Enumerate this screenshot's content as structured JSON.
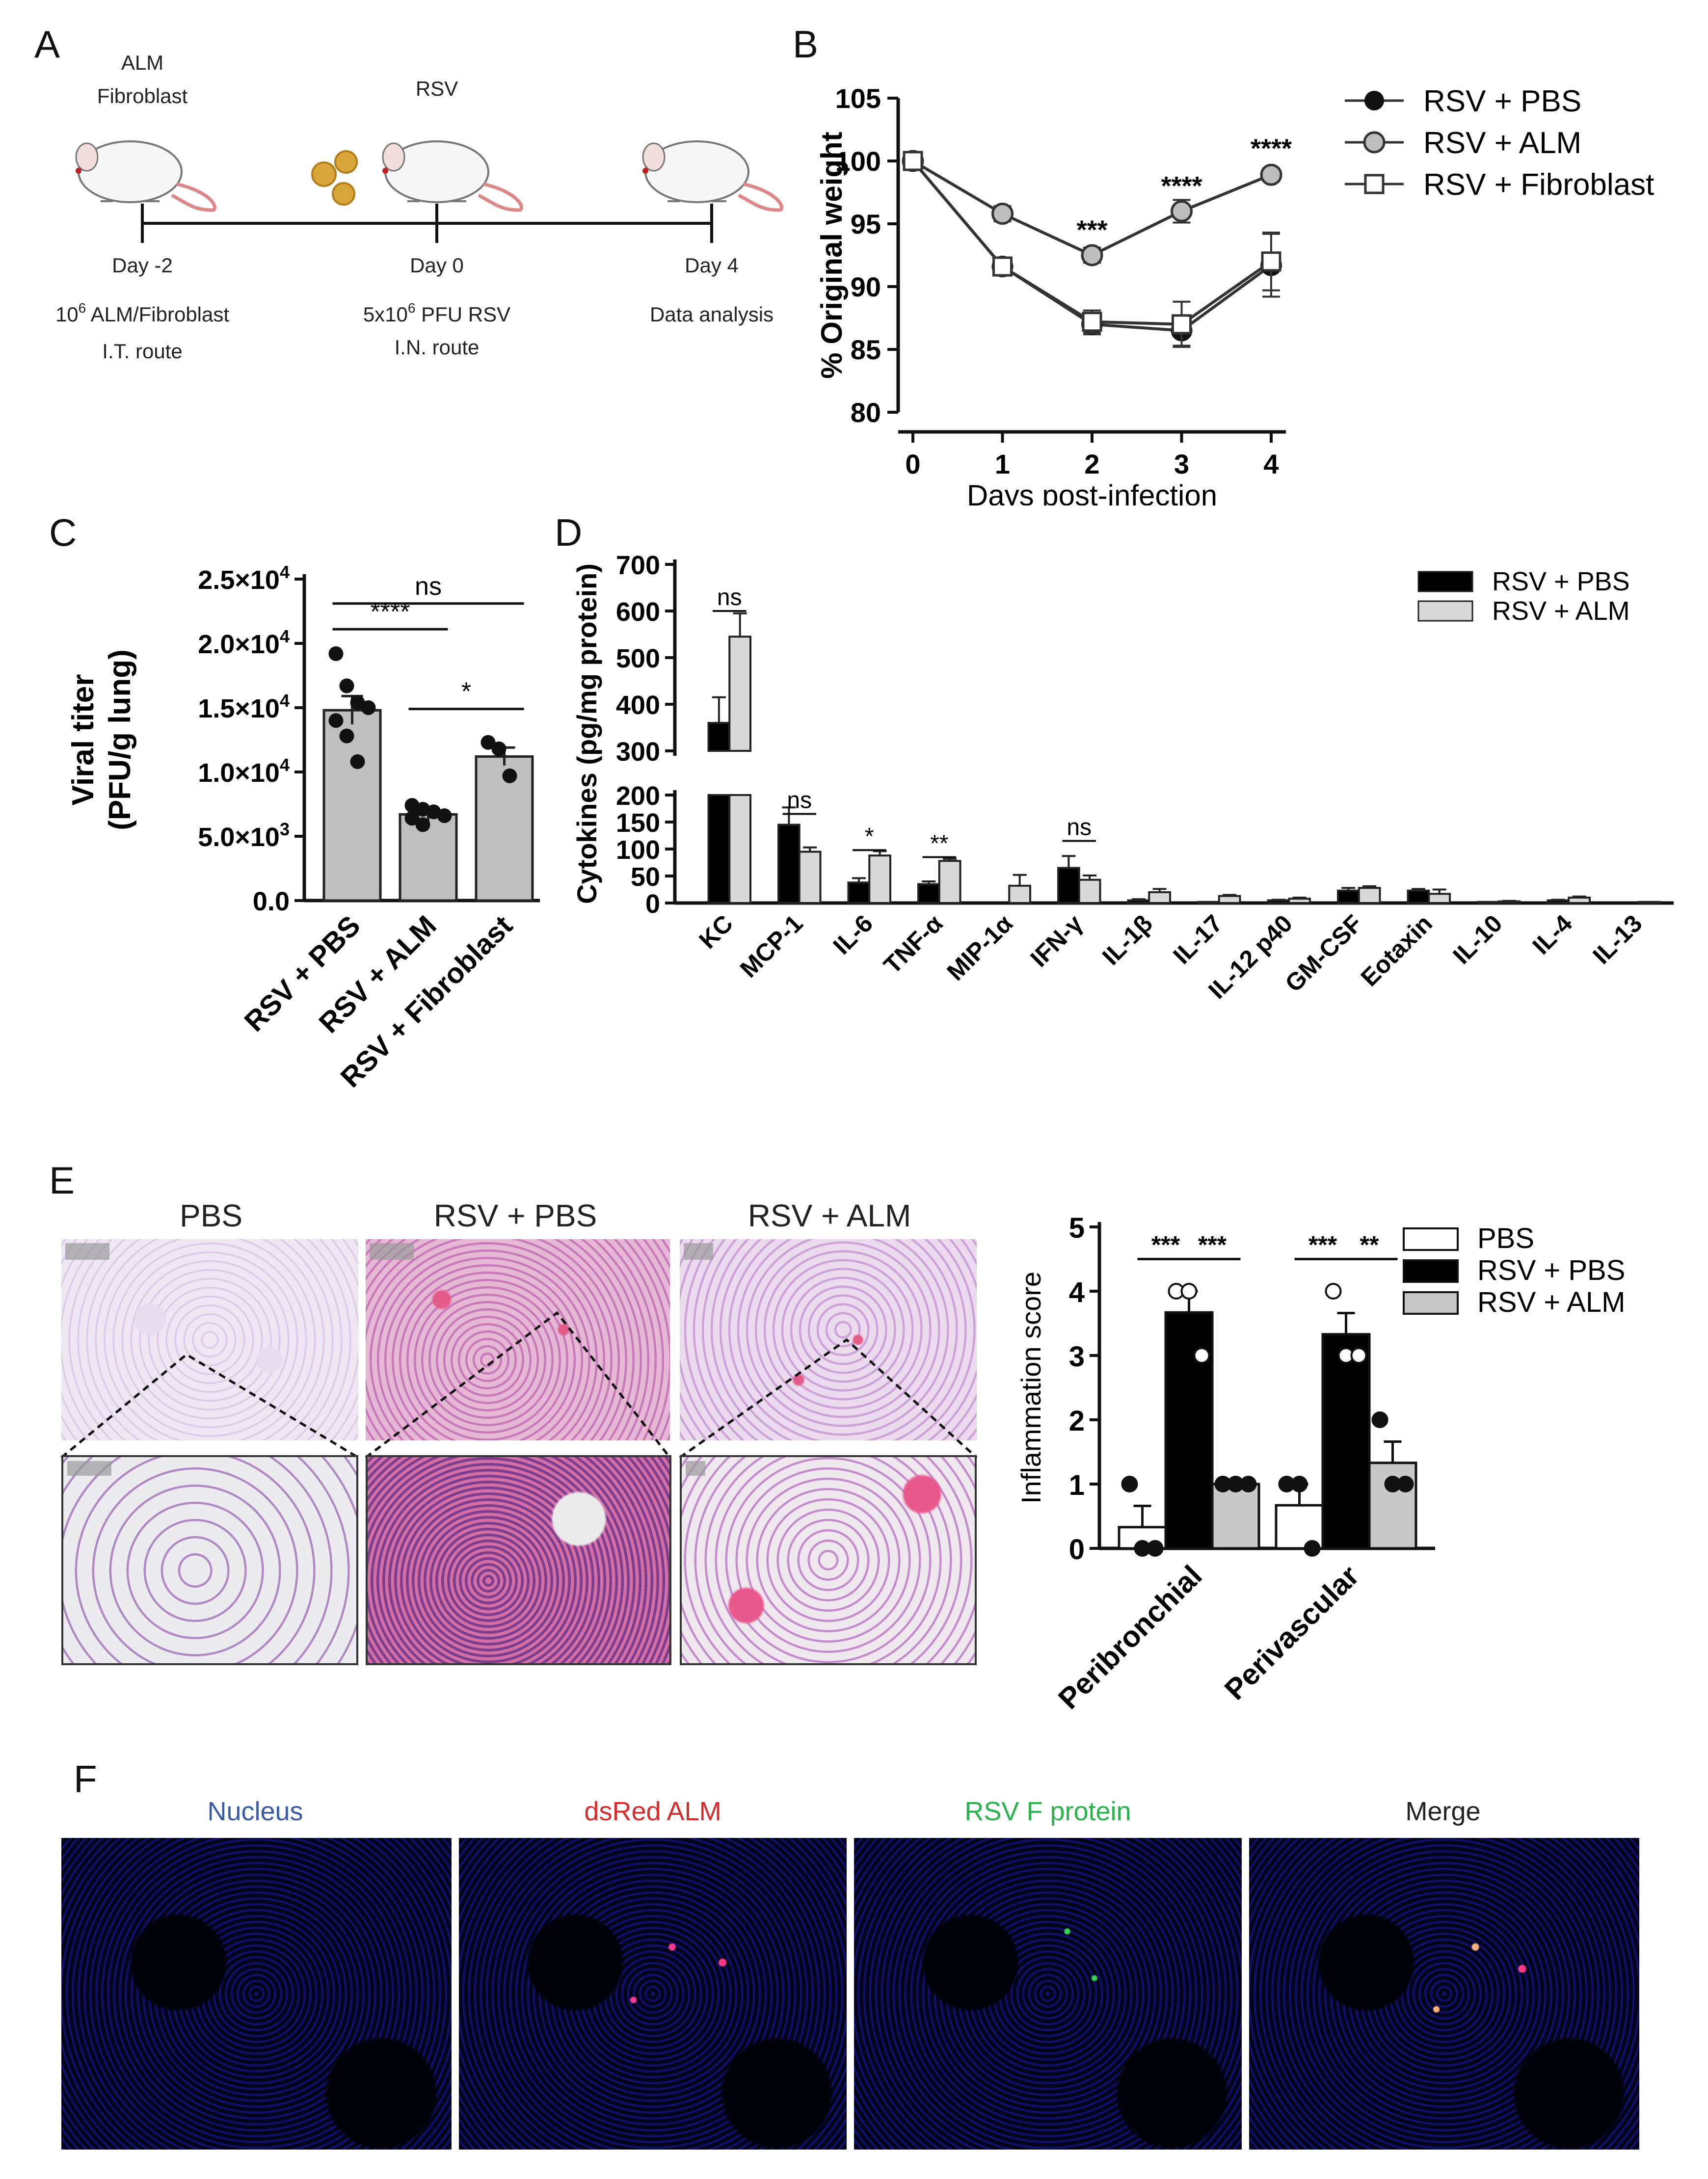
{
  "panels": {
    "A": "A",
    "B": "B",
    "C": "C",
    "D": "D",
    "E": "E",
    "F": "F"
  },
  "panel_a": {
    "top_labels": [
      "ALM",
      "Fibroblast",
      "RSV"
    ],
    "days": [
      "Day -2",
      "Day 0",
      "Day 4"
    ],
    "desc_pre": [
      "10",
      "5x10"
    ],
    "desc_sup": [
      "6",
      "6"
    ],
    "desc_post": [
      " ALM/Fibroblast",
      " PFU RSV"
    ],
    "route": [
      "I.T. route",
      "I.N. route"
    ],
    "analysis": "Data analysis"
  },
  "chart_data": [
    {
      "panel": "B",
      "type": "line",
      "xlabel": "Days post-infection",
      "ylabel": "% Original weight",
      "x": [
        0,
        1,
        2,
        3,
        4
      ],
      "xlim": [
        0,
        4
      ],
      "ylim": [
        80,
        105
      ],
      "yticks": [
        80,
        85,
        90,
        95,
        100,
        105
      ],
      "series": [
        {
          "name": "RSV + PBS",
          "values": [
            100,
            91.6,
            87.0,
            86.5,
            91.7
          ],
          "err": [
            0.4,
            0.6,
            0.8,
            1.2,
            2.5
          ],
          "marker": "circle-filled"
        },
        {
          "name": "RSV + ALM",
          "values": [
            100,
            95.8,
            92.5,
            96.0,
            98.9
          ],
          "err": [
            0.3,
            0.6,
            0.6,
            0.9,
            0.5
          ],
          "marker": "circle-grey"
        },
        {
          "name": "RSV + Fibroblast",
          "values": [
            100,
            91.6,
            87.2,
            87.0,
            92.0
          ],
          "err": [
            0.3,
            0.6,
            0.9,
            1.8,
            2.3
          ],
          "marker": "square-open"
        }
      ],
      "annotations": [
        {
          "x": 2,
          "y": 93.8,
          "text": "***"
        },
        {
          "x": 3,
          "y": 97.3,
          "text": "****"
        },
        {
          "x": 4,
          "y": 100.3,
          "text": "****"
        }
      ]
    },
    {
      "panel": "C",
      "type": "bar",
      "ylabel": [
        "Viral titer",
        "(PFU/g lung)"
      ],
      "categories": [
        "RSV + PBS",
        "RSV + ALM",
        "RSV + Fibroblast"
      ],
      "values": [
        14800,
        6700,
        11200
      ],
      "err": [
        1100,
        500,
        700
      ],
      "points": [
        [
          19200,
          16700,
          15400,
          15000,
          14000,
          12800,
          10800
        ],
        [
          7400,
          7100,
          6900,
          6600,
          6400,
          5900
        ],
        [
          12300,
          11800,
          9700
        ]
      ],
      "ylim": [
        0,
        25000
      ],
      "ytick_values": [
        0,
        5000,
        10000,
        15000,
        20000,
        25000
      ],
      "ytick_labels": [
        "0.0",
        "5.0×10",
        "1.0×10",
        "1.5×10",
        "2.0×10",
        "2.5×10"
      ],
      "ytick_exp": [
        "",
        "3",
        "4",
        "4",
        "4",
        "4"
      ],
      "annotations": [
        {
          "from": 0,
          "to": 2,
          "y": 23100,
          "text": "ns"
        },
        {
          "from": 0,
          "to": 1,
          "y": 21100,
          "text": "****"
        },
        {
          "from": 1,
          "to": 2,
          "y": 14900,
          "text": "*"
        }
      ]
    },
    {
      "panel": "D",
      "type": "bar",
      "ylabel": "Cytokines (pg/mg protein)",
      "categories": [
        "KC",
        "MCP-1",
        "IL-6",
        "TNF-α",
        "MIP-1α",
        "IFN-γ",
        "IL-1β",
        "IL-17",
        "IL-12 p40",
        "GM-CSF",
        "Eotaxin",
        "IL-10",
        "IL-4",
        "IL-13"
      ],
      "series": [
        {
          "name": "RSV + PBS",
          "values": [
            360,
            145,
            38,
            35,
            0,
            65,
            5,
            2,
            5,
            23,
            23,
            2,
            5,
            0
          ],
          "err": [
            55,
            32,
            8,
            5,
            0,
            22,
            2,
            0,
            1,
            5,
            3,
            0,
            1,
            0
          ],
          "color": "#000000"
        },
        {
          "name": "RSV + ALM",
          "values": [
            545,
            95,
            88,
            78,
            32,
            43,
            20,
            13,
            8,
            28,
            17,
            3,
            10,
            2
          ],
          "err": [
            50,
            8,
            8,
            4,
            20,
            8,
            6,
            2,
            2,
            3,
            8,
            1,
            2,
            0
          ],
          "color": "#d9d9d9"
        }
      ],
      "axis_break": [
        200,
        300
      ],
      "lower_ylim": [
        0,
        200
      ],
      "upper_ylim": [
        300,
        700
      ],
      "yticks_lower": [
        0,
        50,
        100,
        150,
        200
      ],
      "yticks_upper": [
        300,
        400,
        500,
        600,
        700
      ],
      "annotations": [
        {
          "category": 0,
          "y": 600,
          "text": "ns"
        },
        {
          "category": 1,
          "y": 165,
          "text": "ns"
        },
        {
          "category": 2,
          "y": 98,
          "text": "*"
        },
        {
          "category": 3,
          "y": 85,
          "text": "**"
        },
        {
          "category": 5,
          "y": 115,
          "text": "ns"
        }
      ]
    },
    {
      "panel": "E",
      "type": "bar",
      "ylabel": "Inflammation score",
      "categories": [
        "Peribronchial",
        "Perivascular"
      ],
      "ylim": [
        0,
        5
      ],
      "yticks": [
        0,
        1,
        2,
        3,
        4,
        5
      ],
      "series": [
        {
          "name": "PBS",
          "values": [
            0.33,
            0.67
          ],
          "err": [
            0.33,
            0.33
          ],
          "points": [
            [
              1,
              0,
              0
            ],
            [
              1,
              1,
              0
            ]
          ],
          "color": "#ffffff"
        },
        {
          "name": "RSV + PBS",
          "values": [
            3.67,
            3.33
          ],
          "err": [
            0.33,
            0.33
          ],
          "points": [
            [
              4,
              4,
              3
            ],
            [
              4,
              3,
              3
            ]
          ],
          "color": "#000000"
        },
        {
          "name": "RSV + ALM",
          "values": [
            1.0,
            1.33
          ],
          "err": [
            0.0,
            0.33
          ],
          "points": [
            [
              1,
              1,
              1
            ],
            [
              2,
              1,
              1
            ]
          ],
          "color": "#c8c8c8"
        }
      ],
      "annotations": [
        {
          "category": 0,
          "from": 0,
          "to": 1,
          "y": 4.5,
          "text": "***"
        },
        {
          "category": 0,
          "from": 1,
          "to": 2,
          "y": 4.5,
          "text": "***"
        },
        {
          "category": 1,
          "from": 0,
          "to": 1,
          "y": 4.5,
          "text": "***"
        },
        {
          "category": 1,
          "from": 1,
          "to": 2,
          "y": 4.5,
          "text": "**"
        }
      ]
    }
  ],
  "panel_e": {
    "histology_titles": [
      "PBS",
      "RSV + PBS",
      "RSV + ALM"
    ]
  },
  "panel_f": {
    "titles": [
      "Nucleus",
      "dsRed ALM",
      "RSV F protein",
      "Merge"
    ],
    "title_colors": [
      "#3b5ba9",
      "#d62c2c",
      "#2bb24c",
      "#222222"
    ]
  }
}
